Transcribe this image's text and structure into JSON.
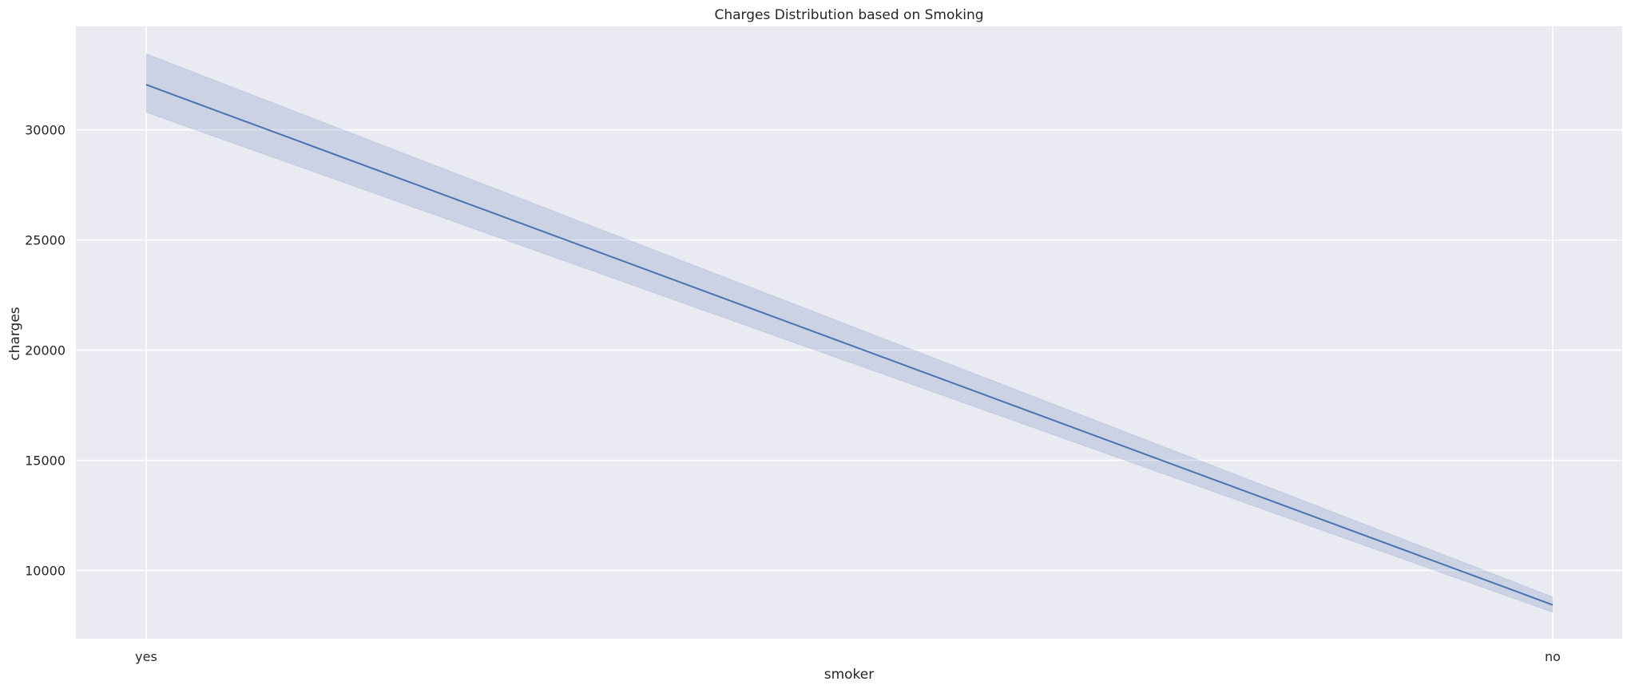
{
  "chart_data": {
    "type": "line",
    "title": "Charges Distribution based on Smoking",
    "xlabel": "smoker",
    "ylabel": "charges",
    "categories": [
      "yes",
      "no"
    ],
    "series": [
      {
        "values": [
          32050,
          8434
        ],
        "ci_lower": [
          30800,
          8100
        ],
        "ci_upper": [
          33450,
          8800
        ]
      }
    ],
    "ylim": [
      6900,
      34700
    ],
    "yticks": [
      10000,
      15000,
      20000,
      25000,
      30000
    ],
    "grid": true,
    "colors": {
      "line": "#4c72b0",
      "band": "#4c72b0",
      "plot_background": "#eaeaf2",
      "grid": "#ffffff"
    }
  }
}
